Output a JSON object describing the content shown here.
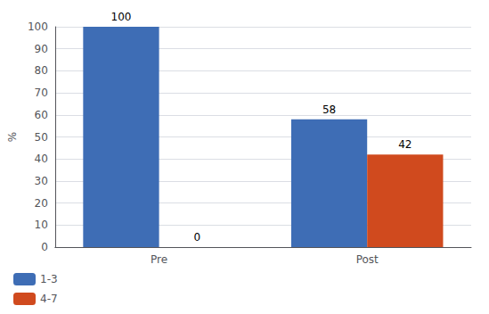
{
  "chart_data": {
    "type": "bar",
    "ylabel": "%",
    "categories": [
      "Pre",
      "Post"
    ],
    "series": [
      {
        "name": "1-3",
        "color": "#3e6db5",
        "values": [
          100,
          58
        ]
      },
      {
        "name": "4-7",
        "color": "#d04a1e",
        "values": [
          0,
          42
        ]
      }
    ],
    "ylim": [
      0,
      100
    ],
    "yticks": [
      0,
      10,
      20,
      30,
      40,
      50,
      60,
      70,
      80,
      90,
      100
    ],
    "grid": true,
    "legend": "lower left",
    "data_labels": true
  }
}
